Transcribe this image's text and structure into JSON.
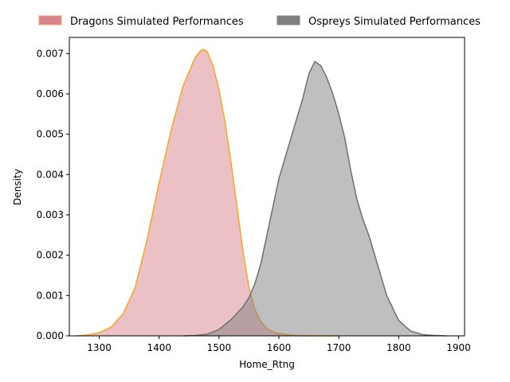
{
  "chart_data": {
    "type": "area",
    "title": "",
    "xlabel": "Home_Rtng",
    "ylabel": "Density",
    "xlim": [
      1250,
      1910
    ],
    "ylim": [
      0,
      0.0074
    ],
    "xticks": [
      1300,
      1400,
      1500,
      1600,
      1700,
      1800,
      1900
    ],
    "yticks": [
      0.0,
      0.001,
      0.002,
      0.003,
      0.004,
      0.005,
      0.006,
      0.007
    ],
    "ytick_labels": [
      "0.000",
      "0.001",
      "0.002",
      "0.003",
      "0.004",
      "0.005",
      "0.006",
      "0.007"
    ],
    "grid": false,
    "legend_position": "top-center (above plot)",
    "series": [
      {
        "name": "Dragons Simulated Performances",
        "fill_color": "#d9848c",
        "fill_opacity": 0.5,
        "line_color": "#f5a623",
        "legend_fill": "#d9848c",
        "legend_edge": "#e8a070",
        "x": [
          1262,
          1280,
          1300,
          1320,
          1340,
          1360,
          1380,
          1400,
          1420,
          1440,
          1460,
          1470,
          1475,
          1480,
          1490,
          1500,
          1510,
          1520,
          1530,
          1540,
          1550,
          1560,
          1570,
          1580,
          1590,
          1600,
          1620,
          1640,
          1660,
          1680,
          1700
        ],
        "y": [
          0.0,
          2e-05,
          8e-05,
          0.00022,
          0.00055,
          0.0012,
          0.0024,
          0.0038,
          0.0051,
          0.0062,
          0.0069,
          0.00708,
          0.0071,
          0.00705,
          0.0067,
          0.0061,
          0.0053,
          0.0043,
          0.0032,
          0.0021,
          0.0012,
          0.00065,
          0.00035,
          0.00018,
          0.0001,
          6e-05,
          2e-05,
          0.0,
          0.0,
          0.0,
          0.0
        ]
      },
      {
        "name": "Ospreys Simulated Performances",
        "fill_color": "#808080",
        "fill_opacity": 0.5,
        "line_color": "#707070",
        "legend_fill": "#808080",
        "legend_edge": "#808080",
        "x": [
          1440,
          1460,
          1480,
          1500,
          1520,
          1540,
          1550,
          1560,
          1570,
          1580,
          1590,
          1600,
          1620,
          1640,
          1650,
          1660,
          1670,
          1680,
          1690,
          1700,
          1710,
          1720,
          1730,
          1740,
          1750,
          1760,
          1780,
          1800,
          1820,
          1840,
          1860,
          1880
        ],
        "y": [
          0.0,
          1e-05,
          4e-05,
          0.00016,
          0.0004,
          0.00072,
          0.00095,
          0.0013,
          0.0018,
          0.0025,
          0.0032,
          0.0039,
          0.0049,
          0.0059,
          0.0065,
          0.0068,
          0.0067,
          0.0064,
          0.006,
          0.0055,
          0.0049,
          0.0041,
          0.0034,
          0.0029,
          0.0025,
          0.002,
          0.001,
          0.00038,
          0.00012,
          3e-05,
          1e-05,
          0.0
        ]
      }
    ]
  }
}
